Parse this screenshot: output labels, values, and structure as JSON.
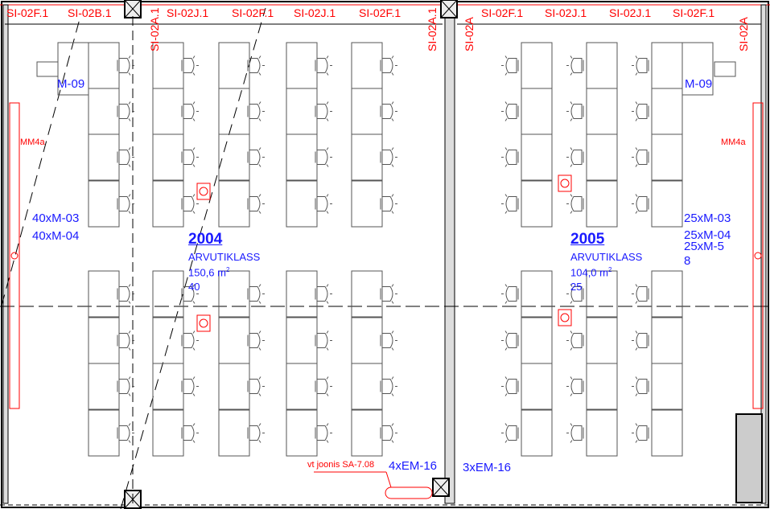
{
  "top_labels": [
    "SI-02F.1",
    "SI-02B.1",
    "SI-02J.1",
    "SI-02F.1",
    "SI-02J.1",
    "SI-02F.1",
    "SI-02F.1",
    "SI-02J.1",
    "SI-02J.1",
    "SI-02F.1"
  ],
  "vertical_labels": [
    "SI-02A.1",
    "SI-02A.1",
    "SI-02A"
  ],
  "equipment": {
    "left_m09": "M-09",
    "right_m09": "M-09",
    "left_mm": "MM4a",
    "right_mm": "MM4a"
  },
  "room_2004": {
    "number": "2004",
    "name": "ARVUTIKLASS",
    "area": "150,6 m",
    "area_sup": "2",
    "seats": "40",
    "items": [
      "40xM-03",
      "40xM-04"
    ]
  },
  "room_2005": {
    "number": "2005",
    "name": "ARVUTIKLASS",
    "area": "104,0 m",
    "area_sup": "2",
    "seats": "25",
    "items": [
      "25xM-03",
      "25xM-04",
      "25xM-5",
      "8"
    ]
  },
  "bottom": {
    "reference": "vt joonis SA-7.08",
    "left_em": "4xEM-16",
    "right_em": "3xEM-16"
  },
  "colors": {
    "annotation": "#ff0000",
    "text": "#1a1aff",
    "lines": "#555555",
    "walls": "#000000"
  }
}
